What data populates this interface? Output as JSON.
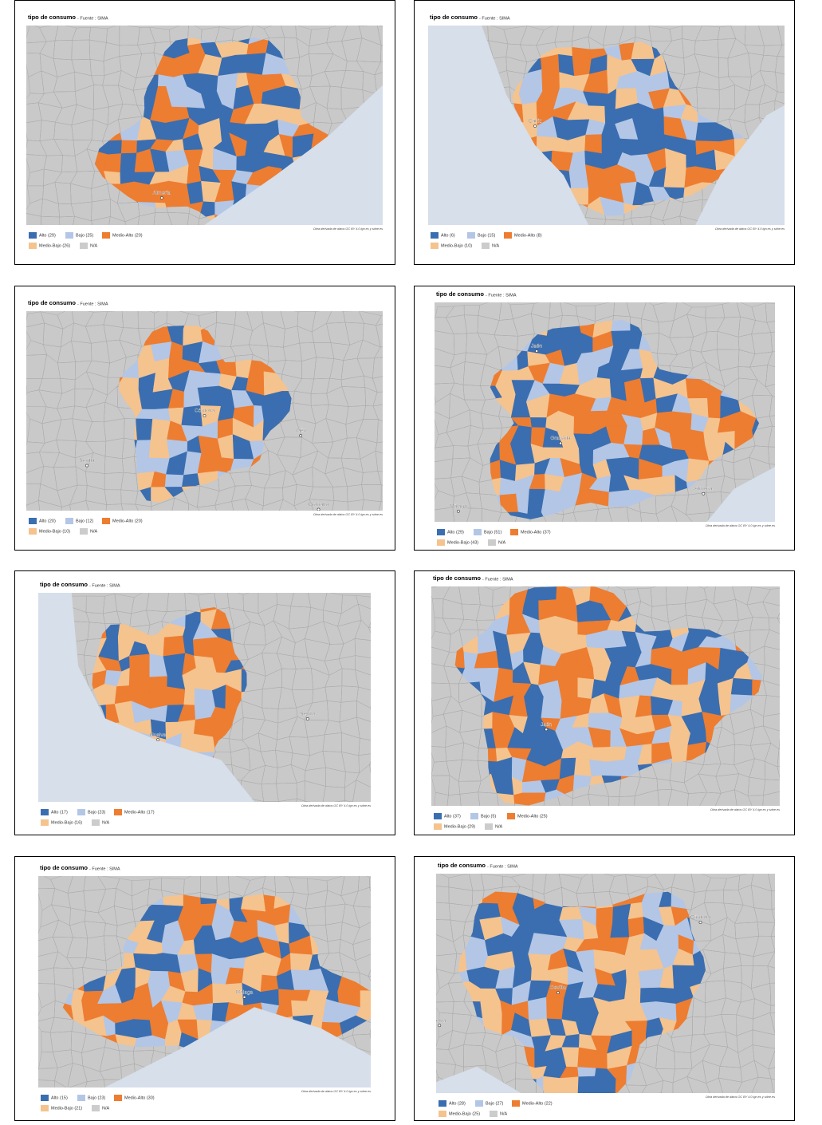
{
  "palette": [
    "#3a6eb0",
    "#b3c6e6",
    "#ed7d31",
    "#f5c38e",
    "#cccccc"
  ],
  "panels": [
    {
      "title": "tipo de consumo",
      "source": "- Fuente : SIMA",
      "cities": [
        "Almería"
      ],
      "legend": [
        "Alto (29)",
        "Bajo (25)",
        "Medio-Alto (20)",
        "Medio-Bajo (26)",
        "N/A"
      ],
      "attribution": "Obra derivada de datos OC BY 4.0 ign.es y sdne.es"
    },
    {
      "title": "tipo de consumo",
      "source": "- Fuente : SIMA",
      "cities": [
        "Cádiz"
      ],
      "legend": [
        "Alto (6)",
        "Bajo (15)",
        "Medio-Alto (8)",
        "Medio-Bajo (10)",
        "N/A"
      ],
      "attribution": "Obra derivada de datos OC BY 4.0 ign.es y sdne.es"
    },
    {
      "title": "tipo de consumo",
      "source": "- Fuente : SIMA",
      "cities": [
        "Córdoba",
        "Jaén",
        "Sevilla",
        "Granada"
      ],
      "legend": [
        "Alto (20)",
        "Bajo (12)",
        "Medio-Alto (20)",
        "Medio-Bajo (10)",
        "N/A"
      ],
      "attribution": "Obra derivada de datos OC BY 4.0 ign.es y sdne.es"
    },
    {
      "title": "tipo de consumo",
      "source": "- Fuente : SIMA",
      "cities": [
        "Jaén",
        "Granada",
        "Almería",
        "Málaga"
      ],
      "legend": [
        "Alto (29)",
        "Bajo (51)",
        "Medio-Alto (37)",
        "Medio-Bajo (43)",
        "N/A"
      ],
      "attribution": "Obra derivada de datos OC BY 4.0 ign.es y sdne.es"
    },
    {
      "title": "tipo de consumo",
      "source": "- Fuente : SIMA",
      "cities": [
        "Huelva",
        "Sevilla"
      ],
      "legend": [
        "Alto (17)",
        "Bajo (23)",
        "Medio-Alto (17)",
        "Medio-Bajo (16)",
        "N/A"
      ],
      "attribution": "Obra derivada de datos OC BY 4.0 ign.es y sdne.es"
    },
    {
      "title": "tipo de consumo",
      "source": "- Fuente : SIMA",
      "cities": [
        "Jaén"
      ],
      "legend": [
        "Alto (37)",
        "Bajo (5)",
        "Medio-Alto (25)",
        "Medio-Bajo (29)",
        "N/A"
      ],
      "attribution": "Obra derivada de datos OC BY 4.0 ign.es y sdne.es"
    },
    {
      "title": "tipo de consumo",
      "source": "- Fuente : SIMA",
      "cities": [
        "Málaga"
      ],
      "legend": [
        "Alto (15)",
        "Bajo (23)",
        "Medio-Alto (30)",
        "Medio-Bajo (21)",
        "N/A"
      ],
      "attribution": "Obra derivada de datos OC BY 4.0 ign.es y sdne.es"
    },
    {
      "title": "tipo de consumo",
      "source": "- Fuente : SIMA",
      "cities": [
        "Córdoba",
        "Sevilla",
        "uelva"
      ],
      "legend": [
        "Alto (28)",
        "Bajo (27)",
        "Medio-Alto (22)",
        "Medio-Bajo (25)",
        "N/A"
      ],
      "attribution": "Obra derivada de datos OC BY 4.0 ign.es y sdne.es"
    }
  ]
}
